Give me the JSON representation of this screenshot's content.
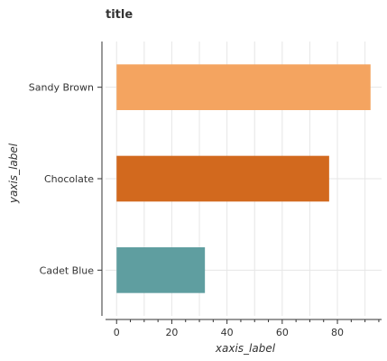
{
  "chart_data": {
    "type": "bar",
    "orientation": "horizontal",
    "title": "title",
    "xlabel": "xaxis_label",
    "ylabel": "yaxis_label",
    "categories": [
      "Sandy Brown",
      "Chocolate",
      "Cadet Blue"
    ],
    "values": [
      92,
      77,
      32
    ],
    "colors": [
      "#f4a460",
      "#d2691e",
      "#5f9ea0"
    ],
    "xlim": [
      -4,
      96
    ],
    "xticks": [
      0,
      20,
      40,
      60,
      80
    ],
    "grid": true
  }
}
